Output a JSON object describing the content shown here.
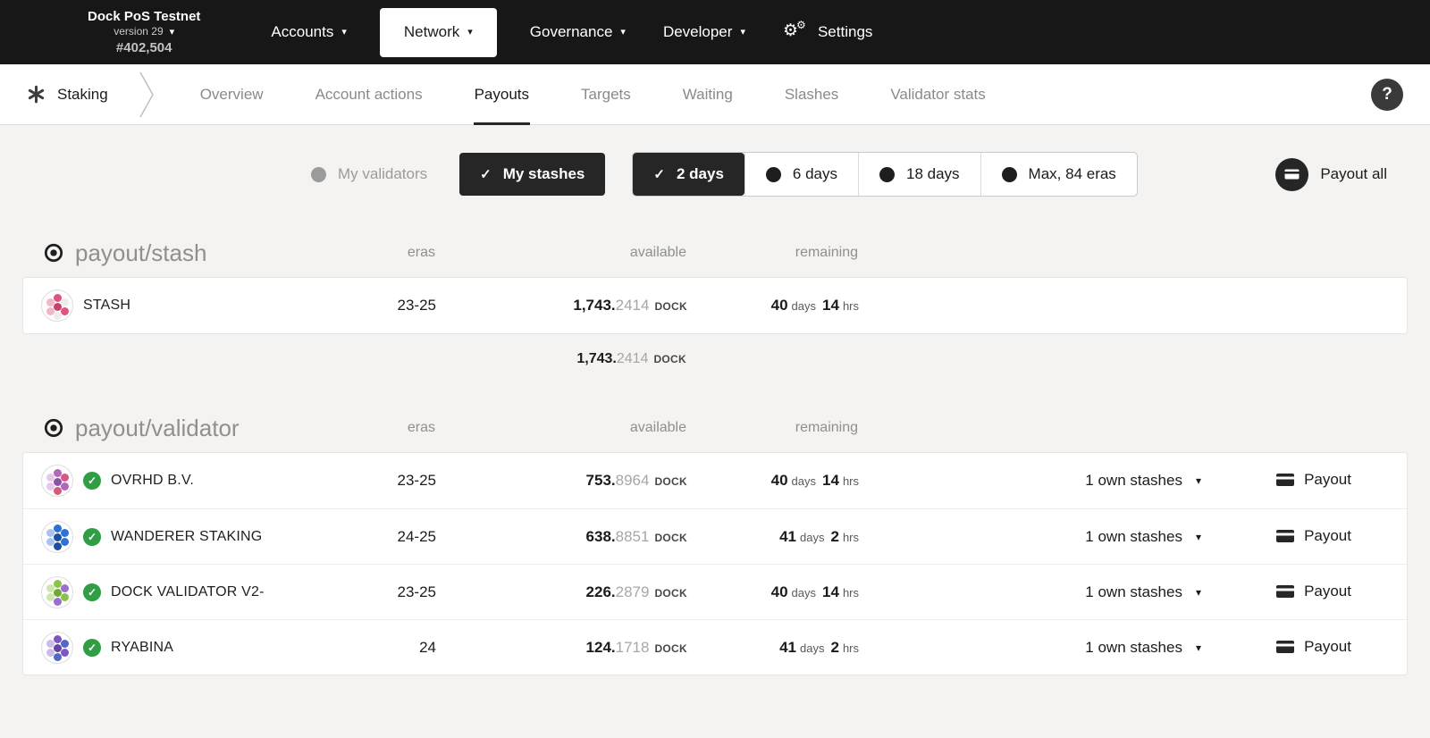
{
  "colors": {
    "topbar_bg": "#171717",
    "accent_black": "#262626",
    "page_bg": "#f5f3f1",
    "success_green": "#2f9e44",
    "muted_text": "#8f8f8f"
  },
  "topbar": {
    "chain_name": "Dock PoS Testnet",
    "version": "version 29",
    "block_number": "#402,504",
    "menus": [
      {
        "label": "Accounts"
      },
      {
        "label": "Network",
        "active": true
      },
      {
        "label": "Governance"
      },
      {
        "label": "Developer"
      }
    ],
    "settings_label": "Settings"
  },
  "tabbar": {
    "section_label": "Staking",
    "tabs": [
      {
        "label": "Overview"
      },
      {
        "label": "Account actions"
      },
      {
        "label": "Payouts",
        "active": true
      },
      {
        "label": "Targets"
      },
      {
        "label": "Waiting"
      },
      {
        "label": "Slashes"
      },
      {
        "label": "Validator stats"
      }
    ],
    "help_label": "?"
  },
  "filters": {
    "my_validators": "My validators",
    "my_stashes": "My stashes",
    "day_options": [
      "2 days",
      "6 days",
      "18 days",
      "Max, 84 eras"
    ],
    "payout_all": "Payout all"
  },
  "stash_table": {
    "title": "payout/stash",
    "columns": [
      "eras",
      "available",
      "remaining"
    ],
    "rows": [
      {
        "name": "STASH",
        "eras": "23-25",
        "amount_int": "1,743.",
        "amount_frac": "2414",
        "unit": "DOCK",
        "days": "40",
        "days_label": "days",
        "hrs": "14",
        "hrs_label": "hrs"
      }
    ],
    "total_int": "1,743.",
    "total_frac": "2414",
    "total_unit": "DOCK"
  },
  "validator_table": {
    "title": "payout/validator",
    "columns": [
      "eras",
      "available",
      "remaining"
    ],
    "rows": [
      {
        "name": "OVRHD B.V.",
        "eras": "23-25",
        "amount_int": "753.",
        "amount_frac": "8964",
        "unit": "DOCK",
        "days": "40",
        "days_label": "days",
        "hrs": "14",
        "hrs_label": "hrs",
        "stashes": "1 own stashes",
        "payout": "Payout"
      },
      {
        "name": "WANDERER STAKING",
        "eras": "24-25",
        "amount_int": "638.",
        "amount_frac": "8851",
        "unit": "DOCK",
        "days": "41",
        "days_label": "days",
        "hrs": "2",
        "hrs_label": "hrs",
        "stashes": "1 own stashes",
        "payout": "Payout"
      },
      {
        "name": "DOCK VALIDATOR V2-",
        "eras": "23-25",
        "amount_int": "226.",
        "amount_frac": "2879",
        "unit": "DOCK",
        "days": "40",
        "days_label": "days",
        "hrs": "14",
        "hrs_label": "hrs",
        "stashes": "1 own stashes",
        "payout": "Payout"
      },
      {
        "name": "RYABINA",
        "eras": "24",
        "amount_int": "124.",
        "amount_frac": "1718",
        "unit": "DOCK",
        "days": "41",
        "days_label": "days",
        "hrs": "2",
        "hrs_label": "hrs",
        "stashes": "1 own stashes",
        "payout": "Payout"
      }
    ]
  }
}
